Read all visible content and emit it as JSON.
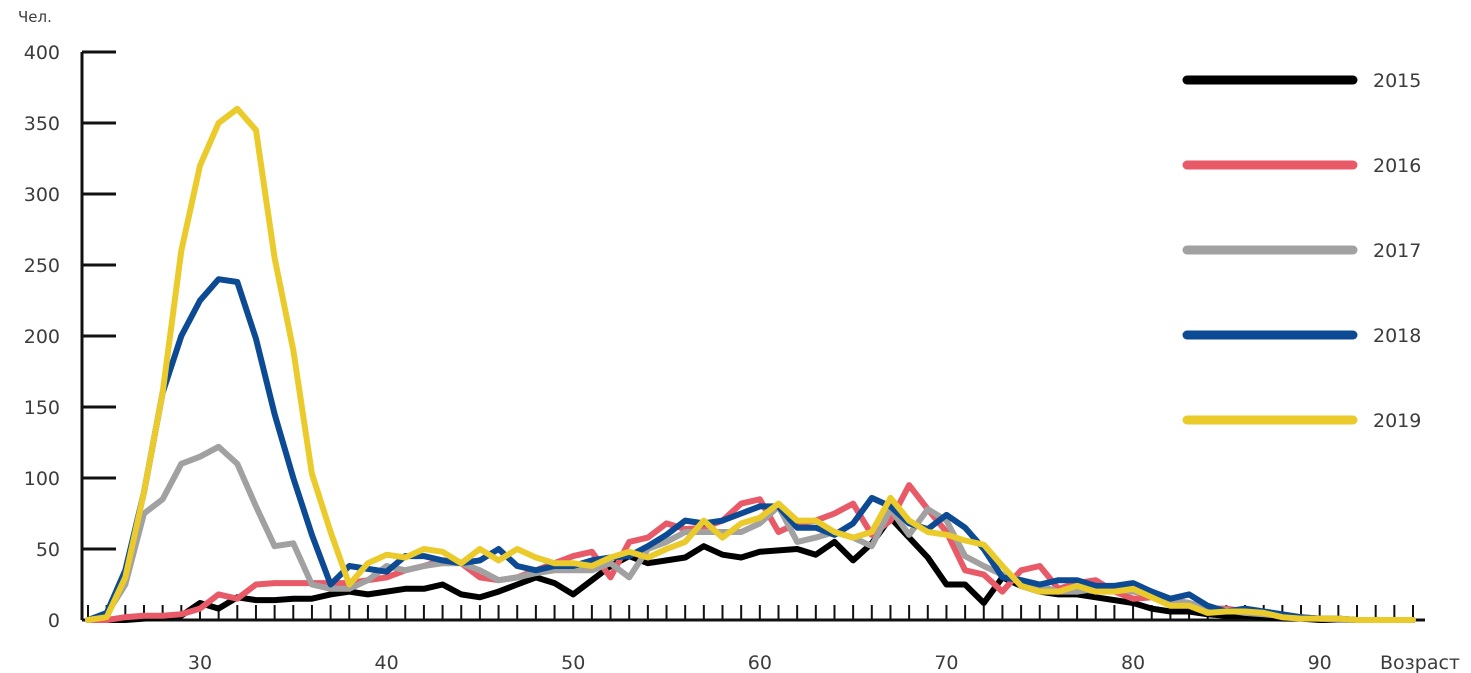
{
  "chart_data": {
    "type": "line",
    "title": "",
    "ylabel": "Чел.",
    "xlabel": "Возраст",
    "xlim": [
      24,
      95
    ],
    "ylim": [
      0,
      400
    ],
    "x_ticks": [
      30,
      40,
      50,
      60,
      70,
      80,
      90
    ],
    "y_ticks": [
      0,
      50,
      100,
      150,
      200,
      250,
      300,
      350,
      400
    ],
    "grid": false,
    "legend_position": "right",
    "x": [
      24,
      25,
      26,
      27,
      28,
      29,
      30,
      31,
      32,
      33,
      34,
      35,
      36,
      37,
      38,
      39,
      40,
      41,
      42,
      43,
      44,
      45,
      46,
      47,
      48,
      49,
      50,
      51,
      52,
      53,
      54,
      55,
      56,
      57,
      58,
      59,
      60,
      61,
      62,
      63,
      64,
      65,
      66,
      67,
      68,
      69,
      70,
      71,
      72,
      73,
      74,
      75,
      76,
      77,
      78,
      79,
      80,
      81,
      82,
      83,
      84,
      85,
      86,
      87,
      88,
      89,
      90,
      91,
      92,
      93,
      94,
      95
    ],
    "series": [
      {
        "name": "2015",
        "color": "#000000",
        "values": [
          0,
          0,
          0,
          1,
          2,
          3,
          12,
          8,
          16,
          14,
          14,
          15,
          15,
          18,
          20,
          18,
          20,
          22,
          22,
          25,
          18,
          16,
          20,
          25,
          30,
          26,
          18,
          28,
          38,
          45,
          40,
          42,
          44,
          52,
          46,
          44,
          48,
          49,
          50,
          46,
          55,
          42,
          54,
          72,
          58,
          44,
          25,
          25,
          12,
          30,
          24,
          20,
          18,
          18,
          16,
          14,
          12,
          8,
          6,
          6,
          4,
          3,
          3,
          2,
          1,
          1,
          0,
          0,
          0,
          0,
          0,
          0
        ]
      },
      {
        "name": "2016",
        "color": "#e85a67",
        "values": [
          0,
          0,
          2,
          3,
          3,
          4,
          8,
          18,
          15,
          25,
          26,
          26,
          26,
          26,
          26,
          28,
          30,
          35,
          38,
          42,
          40,
          30,
          28,
          30,
          35,
          40,
          45,
          48,
          30,
          55,
          58,
          68,
          64,
          65,
          70,
          82,
          85,
          62,
          68,
          70,
          75,
          82,
          60,
          70,
          95,
          78,
          62,
          35,
          32,
          20,
          35,
          38,
          22,
          26,
          28,
          20,
          15,
          16,
          14,
          12,
          8,
          8,
          6,
          5,
          2,
          2,
          1,
          1,
          0,
          0,
          0,
          0
        ]
      },
      {
        "name": "2017",
        "color": "#a1a1a1",
        "values": [
          0,
          4,
          25,
          75,
          85,
          110,
          115,
          122,
          110,
          80,
          52,
          54,
          25,
          22,
          22,
          28,
          38,
          35,
          38,
          40,
          40,
          35,
          28,
          30,
          33,
          35,
          35,
          35,
          40,
          30,
          50,
          55,
          62,
          62,
          62,
          62,
          68,
          80,
          55,
          58,
          62,
          58,
          52,
          78,
          60,
          78,
          70,
          45,
          38,
          32,
          28,
          24,
          20,
          20,
          22,
          22,
          20,
          18,
          14,
          12,
          8,
          7,
          5,
          4,
          3,
          2,
          1,
          0,
          0,
          0,
          0,
          0
        ]
      },
      {
        "name": "2018",
        "color": "#0d4a94",
        "values": [
          0,
          5,
          35,
          90,
          160,
          200,
          225,
          240,
          238,
          198,
          145,
          100,
          60,
          25,
          38,
          36,
          34,
          45,
          45,
          42,
          40,
          42,
          50,
          38,
          35,
          38,
          38,
          42,
          44,
          45,
          52,
          60,
          70,
          68,
          70,
          75,
          80,
          80,
          65,
          65,
          60,
          68,
          86,
          80,
          68,
          64,
          74,
          65,
          50,
          30,
          28,
          25,
          28,
          28,
          24,
          24,
          26,
          20,
          15,
          18,
          10,
          6,
          8,
          6,
          4,
          2,
          1,
          1,
          0,
          0,
          0,
          0
        ]
      },
      {
        "name": "2019",
        "color": "#eacb2b",
        "values": [
          0,
          2,
          30,
          90,
          160,
          260,
          320,
          350,
          360,
          345,
          255,
          190,
          103,
          62,
          25,
          40,
          46,
          44,
          50,
          48,
          40,
          50,
          42,
          50,
          44,
          40,
          40,
          38,
          44,
          48,
          44,
          50,
          55,
          70,
          58,
          68,
          72,
          82,
          70,
          70,
          62,
          58,
          62,
          86,
          70,
          62,
          60,
          56,
          53,
          38,
          24,
          20,
          20,
          24,
          20,
          20,
          22,
          16,
          10,
          10,
          5,
          6,
          6,
          5,
          2,
          1,
          1,
          1,
          0,
          0,
          0,
          0
        ]
      }
    ]
  }
}
